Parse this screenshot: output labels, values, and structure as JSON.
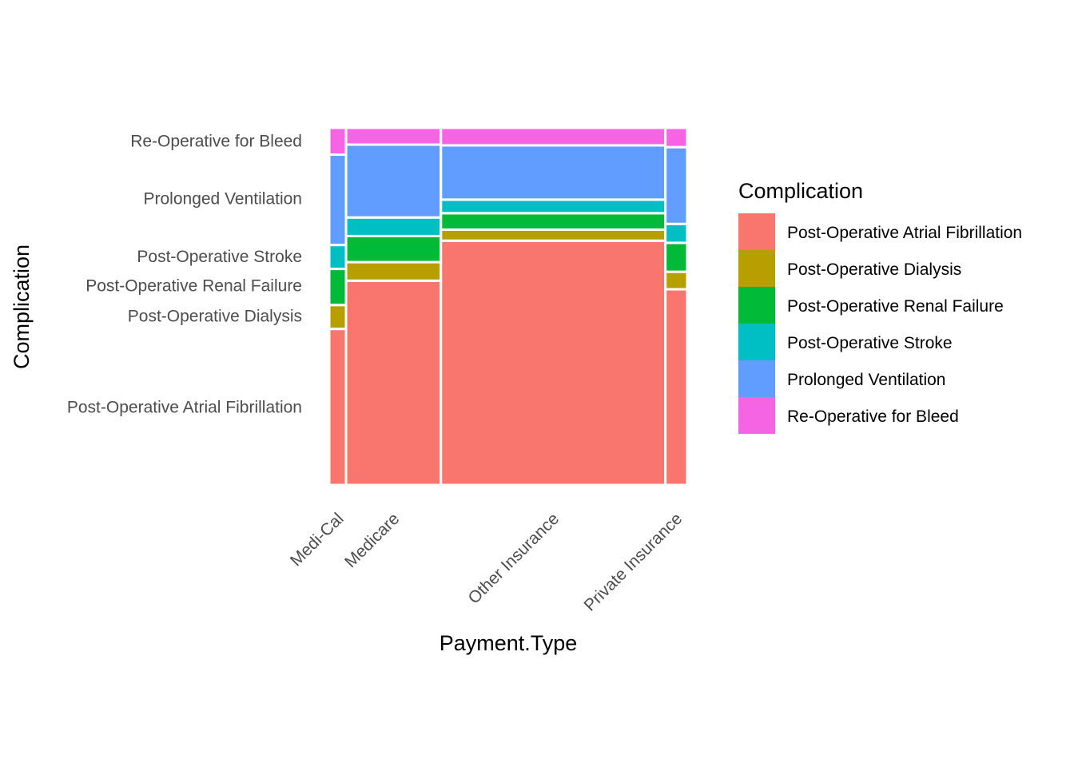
{
  "chart_data": {
    "type": "mosaic",
    "xlabel": "Payment.Type",
    "ylabel": "Complication",
    "legend": {
      "title": "Complication",
      "placement": "right",
      "entries": [
        {
          "label": "Post-Operative Atrial Fibrillation",
          "color": "#F8766D"
        },
        {
          "label": "Post-Operative Dialysis",
          "color": "#B79F00"
        },
        {
          "label": "Post-Operative Renal Failure",
          "color": "#00BA38"
        },
        {
          "label": "Post-Operative Stroke",
          "color": "#00BFC4"
        },
        {
          "label": "Prolonged Ventilation",
          "color": "#619CFF"
        },
        {
          "label": "Re-Operative for Bleed",
          "color": "#F564E3"
        }
      ]
    },
    "categories": [
      "Medi-Cal",
      "Medicare",
      "Other Insurance",
      "Private Insurance"
    ],
    "category_widths": [
      0.047,
      0.265,
      0.627,
      0.061
    ],
    "complications": [
      "Post-Operative Atrial Fibrillation",
      "Post-Operative Dialysis",
      "Post-Operative Renal Failure",
      "Post-Operative Stroke",
      "Prolonged Ventilation",
      "Re-Operative for Bleed"
    ],
    "proportions": {
      "Medi-Cal": [
        0.437,
        0.067,
        0.101,
        0.067,
        0.253,
        0.075
      ],
      "Medicare": [
        0.572,
        0.052,
        0.073,
        0.052,
        0.204,
        0.047
      ],
      "Other Insurance": [
        0.684,
        0.031,
        0.046,
        0.038,
        0.152,
        0.049
      ],
      "Private Insurance": [
        0.548,
        0.049,
        0.081,
        0.053,
        0.215,
        0.054
      ]
    },
    "y_tick_labels": [
      "Re-Operative for Bleed",
      "Prolonged Ventilation",
      "Post-Operative Stroke",
      "Post-Operative Renal Failure",
      "Post-Operative Dialysis",
      "Post-Operative Atrial Fibrillation"
    ],
    "y_tick_positions": [
      0.963,
      0.802,
      0.64,
      0.558,
      0.473,
      0.218
    ],
    "grid": false
  }
}
